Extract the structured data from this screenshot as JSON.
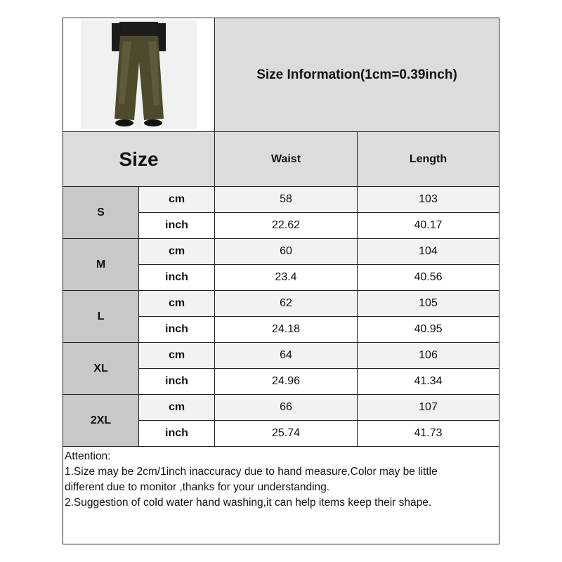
{
  "title": "Size Information(1cm=0.39inch)",
  "product_image": "wide-leg-pants-photo",
  "header": {
    "size": "Size",
    "columns": [
      "Waist",
      "Length"
    ]
  },
  "rows": [
    {
      "size": "S",
      "cm": {
        "unit": "cm",
        "waist": "58",
        "length": "103"
      },
      "inch": {
        "unit": "inch",
        "waist": "22.62",
        "length": "40.17"
      }
    },
    {
      "size": "M",
      "cm": {
        "unit": "cm",
        "waist": "60",
        "length": "104"
      },
      "inch": {
        "unit": "inch",
        "waist": "23.4",
        "length": "40.56"
      }
    },
    {
      "size": "L",
      "cm": {
        "unit": "cm",
        "waist": "62",
        "length": "105"
      },
      "inch": {
        "unit": "inch",
        "waist": "24.18",
        "length": "40.95"
      }
    },
    {
      "size": "XL",
      "cm": {
        "unit": "cm",
        "waist": "64",
        "length": "106"
      },
      "inch": {
        "unit": "inch",
        "waist": "24.96",
        "length": "41.34"
      }
    },
    {
      "size": "2XL",
      "cm": {
        "unit": "cm",
        "waist": "66",
        "length": "107"
      },
      "inch": {
        "unit": "inch",
        "waist": "25.74",
        "length": "41.73"
      }
    }
  ],
  "notes": [
    "Attention:",
    "1.Size may be 2cm/1inch inaccuracy due to hand measure,Color may be little",
    "different due to monitor ,thanks for your understanding.",
    "2.Suggestion of cold water hand washing,it can help items keep their shape."
  ],
  "colors": {
    "header": "#dcdcdc",
    "size_cell": "#c8c8c8",
    "cm_row": "#f2f2f2",
    "pants": "#4e4a2c"
  }
}
